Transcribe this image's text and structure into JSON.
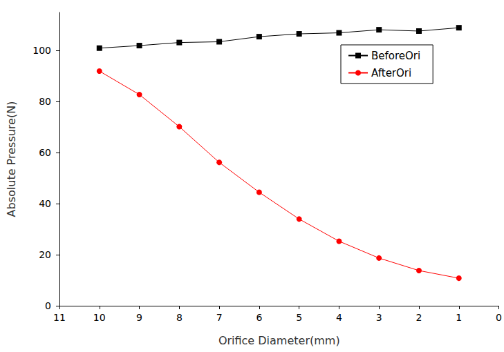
{
  "chart_data": {
    "type": "line",
    "x_label": "Orifice Diameter(mm)",
    "y_label": "Absolute Pressure(N)",
    "x": [
      10,
      9,
      8,
      7,
      6,
      5,
      4,
      3,
      2,
      1
    ],
    "series": [
      {
        "name": "BeforeOri",
        "color": "#000000",
        "marker": "square",
        "line_style": "solid",
        "values": [
          101,
          102,
          103.2,
          103.5,
          105.5,
          106.6,
          107,
          108.2,
          107.7,
          109
        ]
      },
      {
        "name": "AfterOri",
        "color": "#ff0000",
        "marker": "circle",
        "line_style": "solid",
        "values": [
          92,
          82.8,
          70.2,
          56.2,
          44.5,
          34,
          25.3,
          18.7,
          13.8,
          10.8
        ]
      }
    ],
    "xlim": [
      11,
      0
    ],
    "xticks": [
      11,
      10,
      9,
      8,
      7,
      6,
      5,
      4,
      3,
      2,
      1,
      0
    ],
    "ylim": [
      0,
      115
    ],
    "yticks": [
      0,
      20,
      40,
      60,
      80,
      100
    ],
    "grid": false,
    "legend": "upper right"
  }
}
